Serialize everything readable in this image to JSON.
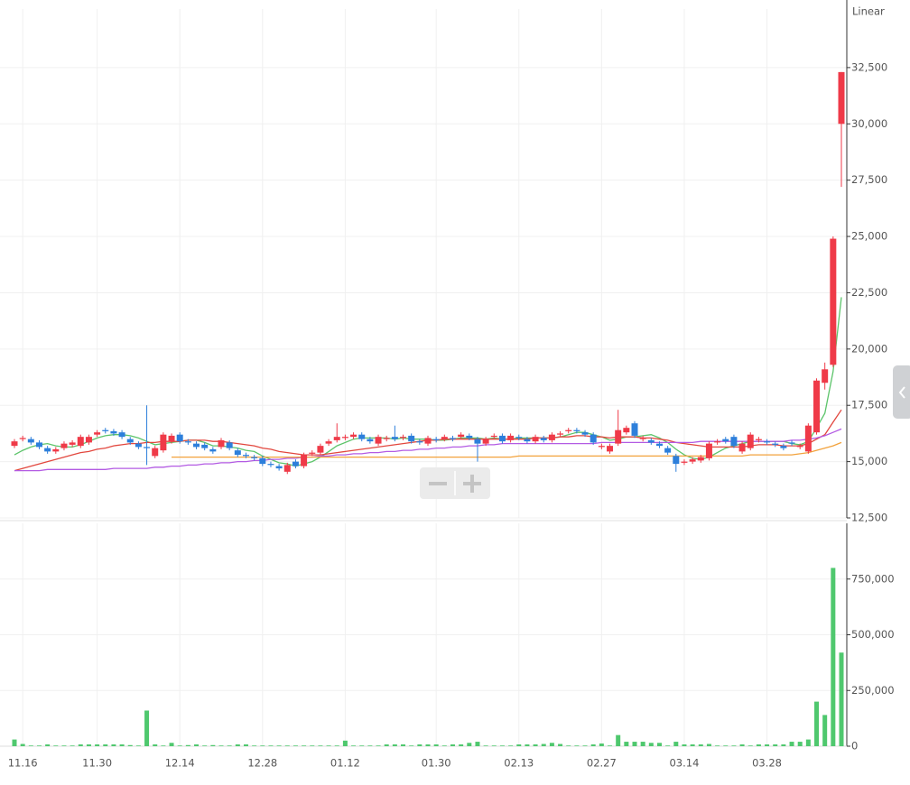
{
  "chart_data": [
    {
      "type": "candlestick",
      "scale_label": "Linear",
      "up_color": "#ef3a48",
      "down_color": "#2d7fdb",
      "categories": [
        null,
        "11.16",
        null,
        null,
        null,
        null,
        null,
        null,
        null,
        null,
        "11.30",
        null,
        null,
        null,
        null,
        null,
        null,
        null,
        null,
        null,
        "12.14",
        null,
        null,
        null,
        null,
        null,
        null,
        null,
        null,
        null,
        "12.28",
        null,
        null,
        null,
        null,
        null,
        null,
        null,
        null,
        null,
        "01.12",
        null,
        null,
        null,
        null,
        null,
        null,
        null,
        null,
        null,
        null,
        "01.30",
        null,
        null,
        null,
        null,
        null,
        null,
        null,
        null,
        null,
        "02.13",
        null,
        null,
        null,
        null,
        null,
        null,
        null,
        null,
        null,
        "02.27",
        null,
        null,
        null,
        null,
        null,
        null,
        null,
        null,
        null,
        "03.14",
        null,
        null,
        null,
        null,
        null,
        null,
        null,
        null,
        null,
        "03.28",
        null,
        null,
        null,
        null,
        null,
        null,
        null,
        null,
        null
      ],
      "open": [
        15700,
        16000,
        16000,
        15850,
        15600,
        15450,
        15600,
        15750,
        15700,
        15850,
        16200,
        16400,
        16350,
        16300,
        16000,
        15800,
        15650,
        15250,
        15500,
        15900,
        16200,
        15900,
        15800,
        15750,
        15550,
        15650,
        15850,
        15500,
        15300,
        15200,
        15150,
        14900,
        14800,
        14550,
        15000,
        14800,
        15350,
        15400,
        15800,
        15950,
        16050,
        16100,
        16200,
        16000,
        15800,
        16000,
        16100,
        16050,
        16150,
        15900,
        15800,
        16000,
        16000,
        16050,
        16100,
        16150,
        16000,
        15800,
        16100,
        16150,
        15950,
        16100,
        16000,
        15900,
        16050,
        15950,
        16200,
        16350,
        16400,
        16300,
        16200,
        15650,
        15450,
        15800,
        16300,
        16700,
        16000,
        15950,
        15800,
        15600,
        15250,
        14950,
        15000,
        15050,
        15150,
        15850,
        16000,
        16100,
        15450,
        15600,
        15950,
        15900,
        15800,
        15700,
        15850,
        15650,
        15450,
        16300,
        18500,
        19300,
        30000
      ],
      "high": [
        16000,
        16150,
        16100,
        15950,
        15700,
        15650,
        15900,
        15950,
        16200,
        16200,
        16400,
        16500,
        16450,
        16400,
        16100,
        15900,
        17500,
        15700,
        16300,
        16250,
        16300,
        16000,
        15900,
        15850,
        15650,
        16050,
        15950,
        15600,
        15400,
        15300,
        15250,
        15000,
        14900,
        14950,
        15100,
        15400,
        15500,
        15800,
        16000,
        16700,
        16200,
        16300,
        16300,
        16100,
        16200,
        16150,
        16600,
        16200,
        16250,
        16000,
        16150,
        16100,
        16200,
        16150,
        16300,
        16250,
        16100,
        16100,
        16250,
        16250,
        16250,
        16200,
        16100,
        16200,
        16150,
        16300,
        16350,
        16500,
        16500,
        16400,
        16300,
        15800,
        15800,
        17300,
        16600,
        16800,
        16150,
        16050,
        15900,
        15700,
        15350,
        15100,
        15200,
        15300,
        15900,
        16000,
        16100,
        16200,
        15900,
        16300,
        16100,
        16000,
        15900,
        15800,
        15950,
        15800,
        16700,
        18700,
        19400,
        25000,
        32300
      ],
      "low": [
        15600,
        15900,
        15750,
        15550,
        15350,
        15350,
        15500,
        15650,
        15600,
        15750,
        16100,
        16250,
        16150,
        16000,
        15750,
        15550,
        14850,
        15150,
        15400,
        15800,
        15800,
        15750,
        15550,
        15500,
        15350,
        15550,
        15500,
        15200,
        15150,
        15050,
        14800,
        14750,
        14600,
        14450,
        14700,
        14700,
        15250,
        15300,
        15700,
        15850,
        15950,
        16000,
        15900,
        15800,
        15700,
        15900,
        15900,
        15950,
        15800,
        15750,
        15700,
        15850,
        15900,
        15900,
        16000,
        15950,
        15000,
        15700,
        16000,
        15800,
        15850,
        15950,
        15800,
        15800,
        15850,
        15850,
        16100,
        16250,
        16250,
        16100,
        15750,
        15550,
        15350,
        15700,
        16200,
        16050,
        15900,
        15750,
        15600,
        15300,
        14550,
        14850,
        14900,
        14950,
        15050,
        15750,
        15800,
        15600,
        15350,
        15500,
        15850,
        15750,
        15650,
        15500,
        15700,
        15550,
        15350,
        16200,
        18200,
        19200,
        27200
      ],
      "close": [
        15900,
        16050,
        15850,
        15650,
        15450,
        15550,
        15800,
        15850,
        16100,
        16100,
        16300,
        16350,
        16250,
        16100,
        15850,
        15650,
        15600,
        15600,
        16200,
        16150,
        15900,
        15850,
        15650,
        15600,
        15450,
        15950,
        15600,
        15300,
        15250,
        15150,
        14900,
        14850,
        14700,
        14850,
        14800,
        15300,
        15400,
        15700,
        15900,
        16100,
        16100,
        16200,
        16000,
        15900,
        16100,
        16050,
        16000,
        16100,
        15900,
        15850,
        16050,
        15950,
        16100,
        16000,
        16200,
        16050,
        15800,
        16000,
        16150,
        15900,
        16150,
        16050,
        15900,
        16100,
        15950,
        16200,
        16250,
        16400,
        16350,
        16200,
        15850,
        15700,
        15700,
        16400,
        16500,
        16150,
        16050,
        15850,
        15700,
        15400,
        14900,
        15000,
        15100,
        15200,
        15800,
        15900,
        15900,
        15700,
        15800,
        16200,
        16000,
        15850,
        15750,
        15600,
        15800,
        15700,
        16600,
        18600,
        19100,
        24900,
        32300
      ],
      "lines": [
        {
          "color": "#5cc46a",
          "values": [
            15300,
            15500,
            15650,
            15750,
            15800,
            15700,
            15650,
            15650,
            15750,
            15900,
            16050,
            16150,
            16200,
            16200,
            16150,
            16050,
            15900,
            15750,
            15800,
            15850,
            15900,
            15950,
            15950,
            15850,
            15700,
            15700,
            15650,
            15600,
            15500,
            15450,
            15250,
            15100,
            14950,
            14900,
            14800,
            14900,
            15000,
            15200,
            15450,
            15700,
            15850,
            16000,
            16050,
            16050,
            16050,
            16050,
            16000,
            16050,
            16000,
            16000,
            16000,
            15950,
            15950,
            16000,
            16050,
            16050,
            16050,
            16000,
            16050,
            16000,
            16000,
            16050,
            16050,
            16050,
            16050,
            16050,
            16100,
            16200,
            16300,
            16300,
            16200,
            16100,
            15950,
            16000,
            16100,
            16100,
            16150,
            16200,
            16050,
            15850,
            15550,
            15300,
            15150,
            15100,
            15200,
            15400,
            15600,
            15700,
            15800,
            15900,
            15900,
            15900,
            15900,
            15900,
            15800,
            15750,
            15900,
            16500,
            17150,
            19000,
            22300
          ]
        },
        {
          "color": "#e2473e",
          "values": [
            14600,
            14700,
            14800,
            14900,
            15000,
            15100,
            15200,
            15300,
            15400,
            15450,
            15550,
            15600,
            15700,
            15750,
            15800,
            15800,
            15850,
            15850,
            15900,
            15900,
            15900,
            15950,
            15950,
            15950,
            15900,
            15900,
            15850,
            15800,
            15750,
            15700,
            15600,
            15550,
            15450,
            15400,
            15350,
            15300,
            15300,
            15300,
            15350,
            15400,
            15450,
            15500,
            15550,
            15600,
            15650,
            15700,
            15750,
            15800,
            15850,
            15900,
            15950,
            15950,
            16000,
            16000,
            16000,
            16000,
            16000,
            16000,
            16000,
            16000,
            16000,
            16000,
            16000,
            16050,
            16050,
            16050,
            16100,
            16100,
            16150,
            16150,
            16100,
            16100,
            16050,
            16100,
            16100,
            16100,
            16050,
            16050,
            16000,
            15950,
            15850,
            15800,
            15750,
            15700,
            15650,
            15650,
            15650,
            15650,
            15650,
            15700,
            15750,
            15750,
            15750,
            15700,
            15700,
            15700,
            15800,
            16000,
            16200,
            16750,
            17300
          ]
        },
        {
          "color": "#b35be3",
          "values": [
            14600,
            14600,
            14600,
            14600,
            14650,
            14650,
            14650,
            14650,
            14650,
            14650,
            14650,
            14650,
            14700,
            14700,
            14700,
            14700,
            14700,
            14750,
            14750,
            14800,
            14800,
            14850,
            14850,
            14900,
            14900,
            14950,
            14950,
            15000,
            15000,
            15050,
            15050,
            15100,
            15100,
            15150,
            15150,
            15200,
            15200,
            15250,
            15250,
            15300,
            15300,
            15350,
            15350,
            15400,
            15400,
            15450,
            15450,
            15500,
            15500,
            15550,
            15550,
            15600,
            15600,
            15650,
            15650,
            15700,
            15700,
            15750,
            15750,
            15800,
            15800,
            15800,
            15800,
            15800,
            15800,
            15800,
            15800,
            15800,
            15800,
            15800,
            15800,
            15850,
            15850,
            15850,
            15850,
            15850,
            15850,
            15850,
            15850,
            15850,
            15850,
            15850,
            15850,
            15900,
            15900,
            15900,
            15900,
            15900,
            15900,
            15900,
            15900,
            15900,
            15900,
            15900,
            15950,
            15950,
            16000,
            16050,
            16150,
            16300,
            16450
          ]
        },
        {
          "color": "#f2a23c",
          "values": [
            null,
            null,
            null,
            null,
            null,
            null,
            null,
            null,
            null,
            null,
            null,
            null,
            null,
            null,
            null,
            null,
            null,
            null,
            null,
            15200,
            15200,
            15200,
            15200,
            15200,
            15200,
            15200,
            15200,
            15200,
            15200,
            15200,
            15200,
            15200,
            15200,
            15200,
            15200,
            15200,
            15200,
            15200,
            15200,
            15200,
            15200,
            15200,
            15200,
            15200,
            15200,
            15200,
            15200,
            15200,
            15200,
            15200,
            15200,
            15200,
            15200,
            15200,
            15200,
            15200,
            15200,
            15200,
            15200,
            15200,
            15200,
            15250,
            15250,
            15250,
            15250,
            15250,
            15250,
            15250,
            15250,
            15250,
            15250,
            15250,
            15250,
            15250,
            15250,
            15250,
            15250,
            15250,
            15250,
            15250,
            15250,
            15250,
            15250,
            15250,
            15250,
            15250,
            15250,
            15250,
            15250,
            15300,
            15300,
            15300,
            15300,
            15300,
            15300,
            15350,
            15400,
            15500,
            15600,
            15700,
            15850
          ]
        }
      ],
      "ylim": [
        12500,
        35100
      ],
      "yticks": [
        {
          "value": 12500,
          "label": "12,500"
        },
        {
          "value": 15000,
          "label": "15,000"
        },
        {
          "value": 17500,
          "label": "17,500"
        },
        {
          "value": 20000,
          "label": "20,000"
        },
        {
          "value": 22500,
          "label": "22,500"
        },
        {
          "value": 25000,
          "label": "25,000"
        },
        {
          "value": 27500,
          "label": "27,500"
        },
        {
          "value": 30000,
          "label": "30,000"
        },
        {
          "value": 32500,
          "label": "32,500"
        }
      ],
      "grid": true
    },
    {
      "type": "bar",
      "color": "#4fc86e",
      "values": [
        30000,
        10000,
        3000,
        3000,
        8000,
        3000,
        3000,
        3000,
        8000,
        8000,
        8000,
        8000,
        8000,
        8000,
        5000,
        3000,
        160000,
        8000,
        3000,
        15000,
        3000,
        5000,
        8000,
        3000,
        5000,
        3000,
        3000,
        8000,
        8000,
        3000,
        3000,
        3000,
        3000,
        3000,
        3000,
        3000,
        3000,
        3000,
        3000,
        3000,
        25000,
        3000,
        3000,
        3000,
        3000,
        8000,
        8000,
        8000,
        3000,
        8000,
        8000,
        8000,
        3000,
        8000,
        8000,
        15000,
        20000,
        3000,
        3000,
        3000,
        3000,
        8000,
        8000,
        8000,
        10000,
        15000,
        10000,
        3000,
        3000,
        3000,
        8000,
        12000,
        3000,
        50000,
        20000,
        20000,
        20000,
        15000,
        15000,
        3000,
        20000,
        8000,
        8000,
        8000,
        10000,
        3000,
        3000,
        3000,
        8000,
        3000,
        8000,
        8000,
        8000,
        8000,
        20000,
        20000,
        30000,
        200000,
        140000,
        800000,
        420000
      ],
      "ylim": [
        0,
        1000000
      ],
      "yticks": [
        0,
        {
          "value": 250000,
          "label": "250,000"
        },
        {
          "value": 500000,
          "label": "500,000"
        },
        {
          "value": 750000,
          "label": "750,000"
        }
      ],
      "grid": true
    }
  ]
}
